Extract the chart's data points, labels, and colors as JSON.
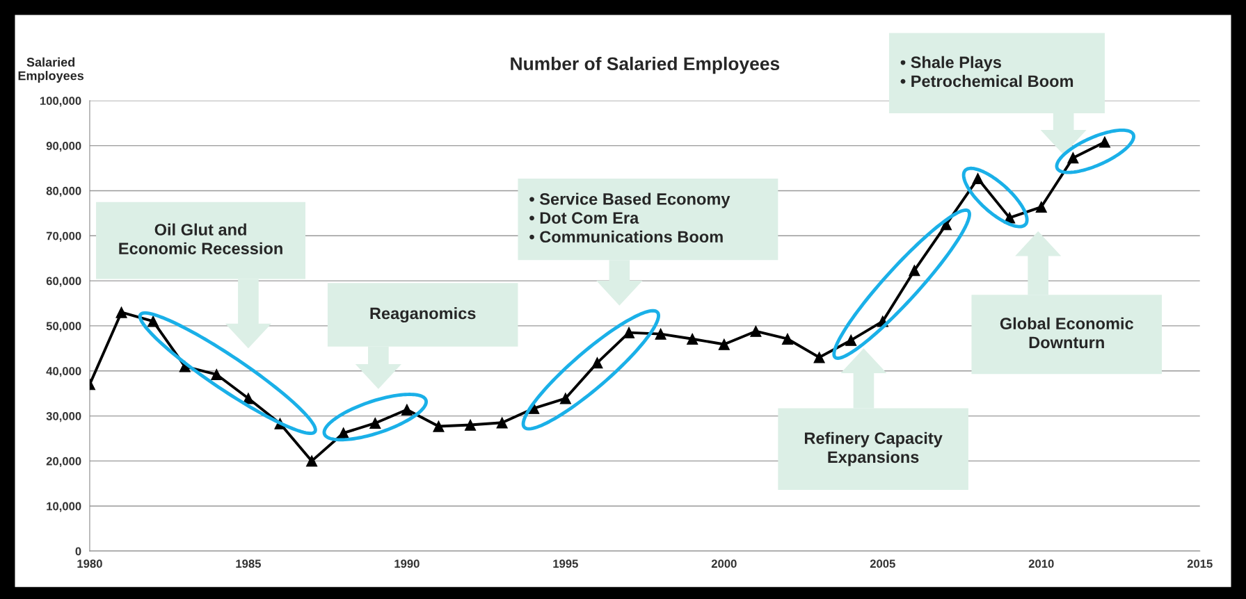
{
  "chart_data": {
    "type": "line",
    "title": "Number of Salaried Employees",
    "ylabel": "Salaried\nEmployees",
    "x": [
      1980,
      1981,
      1982,
      1983,
      1984,
      1985,
      1986,
      1987,
      1988,
      1989,
      1990,
      1991,
      1992,
      1993,
      1994,
      1995,
      1996,
      1997,
      1998,
      1999,
      2000,
      2001,
      2002,
      2003,
      2004,
      2005,
      2006,
      2007,
      2008,
      2009,
      2010,
      2011,
      2012
    ],
    "series": [
      {
        "color": "#000000",
        "values": [
          37000,
          53000,
          51000,
          41000,
          39200,
          33900,
          28300,
          20000,
          26200,
          28400,
          31400,
          27700,
          28000,
          28500,
          31700,
          33900,
          41800,
          48500,
          48200,
          47100,
          45900,
          48800,
          47100,
          43000,
          46800,
          51000,
          62300,
          72500,
          82700,
          74000,
          76400,
          87300,
          90800
        ]
      }
    ],
    "xlim": [
      1980,
      2015
    ],
    "xticks": [
      1980,
      1985,
      1990,
      1995,
      2000,
      2005,
      2010,
      2015
    ],
    "ylim": [
      0,
      100000
    ],
    "yticks": [
      0,
      {
        "value": 10000,
        "label": "10,000"
      },
      {
        "value": 20000,
        "label": "20,000"
      },
      {
        "value": 30000,
        "label": "30,000"
      },
      {
        "value": 40000,
        "label": "40,000"
      },
      {
        "value": 50000,
        "label": "50,000"
      },
      {
        "value": 60000,
        "label": "60,000"
      },
      {
        "value": 70000,
        "label": "70,000"
      },
      {
        "value": 80000,
        "label": "80,000"
      },
      {
        "value": 90000,
        "label": "90,000"
      },
      {
        "value": 100000,
        "label": "100,000"
      }
    ],
    "annotations": [
      "Oil Glut and\nEconomic Recession",
      "Reaganomics",
      "• Service Based Economy\n• Dot Com Era\n• Communications Boom",
      "Refinery Capacity\nExpansions",
      "Global Economic\nDownturn",
      "• Shale Plays\n• Petrochemical Boom"
    ],
    "grid": "y",
    "legend": false,
    "marker": "triangle",
    "line_style": "solid"
  }
}
